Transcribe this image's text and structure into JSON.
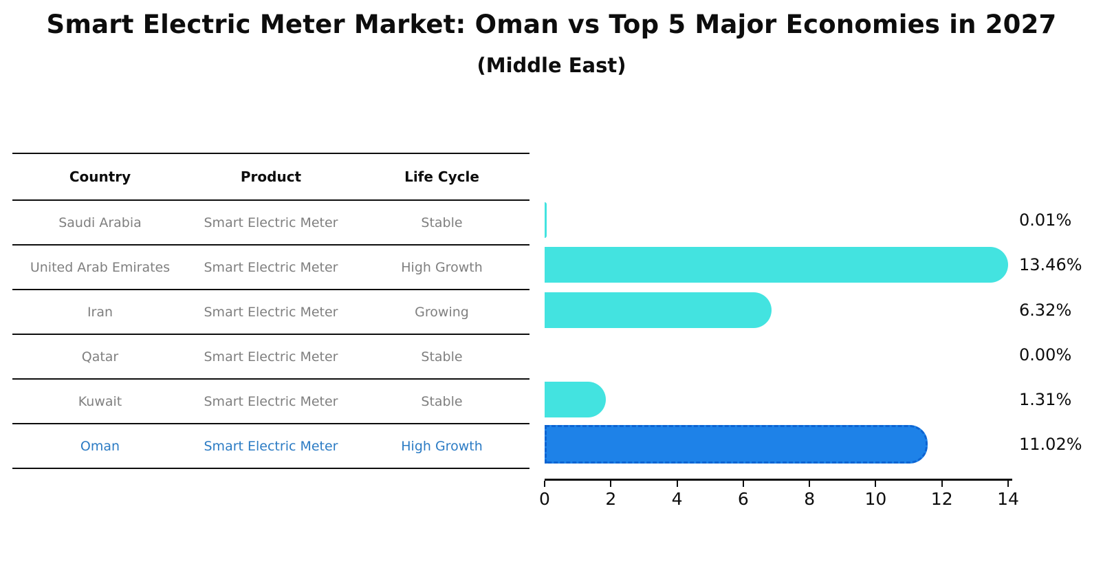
{
  "title": "Smart Electric Meter Market: Oman vs Top 5 Major Economies in 2027",
  "subtitle": "(Middle East)",
  "table": {
    "headers": [
      "Country",
      "Product",
      "Life Cycle"
    ],
    "rows": [
      {
        "country": "Saudi Arabia",
        "product": "Smart Electric Meter",
        "life_cycle": "Stable"
      },
      {
        "country": "United Arab Emirates",
        "product": "Smart Electric Meter",
        "life_cycle": "High Growth"
      },
      {
        "country": "Iran",
        "product": "Smart Electric Meter",
        "life_cycle": "Growing"
      },
      {
        "country": "Qatar",
        "product": "Smart Electric Meter",
        "life_cycle": "Stable"
      },
      {
        "country": "Kuwait",
        "product": "Smart Electric Meter",
        "life_cycle": "Stable"
      },
      {
        "country": "Oman",
        "product": "Smart Electric Meter",
        "life_cycle": "High Growth"
      }
    ]
  },
  "chart_data": {
    "type": "bar",
    "orientation": "horizontal",
    "title": "Smart Electric Meter Market: Oman vs Top 5 Major Economies in 2027 (Middle East)",
    "categories": [
      "Saudi Arabia",
      "United Arab Emirates",
      "Iran",
      "Qatar",
      "Kuwait",
      "Oman"
    ],
    "values": [
      0.01,
      13.46,
      6.32,
      0.0,
      1.31,
      11.02
    ],
    "value_labels": [
      "0.01%",
      "13.46%",
      "6.32%",
      "0.00%",
      "1.31%",
      "11.02%"
    ],
    "unit": "%",
    "xlim": [
      0,
      14
    ],
    "x_ticks": [
      "0",
      "2",
      "4",
      "6",
      "8",
      "10",
      "12",
      "14"
    ],
    "grid": false,
    "legend": false,
    "highlight_index": 5,
    "bar_color": "#43e3e0",
    "highlight_color": "#1e82e8",
    "highlight_border_color": "#0d64d2",
    "highlight_text_color": "#2b7bc4"
  }
}
